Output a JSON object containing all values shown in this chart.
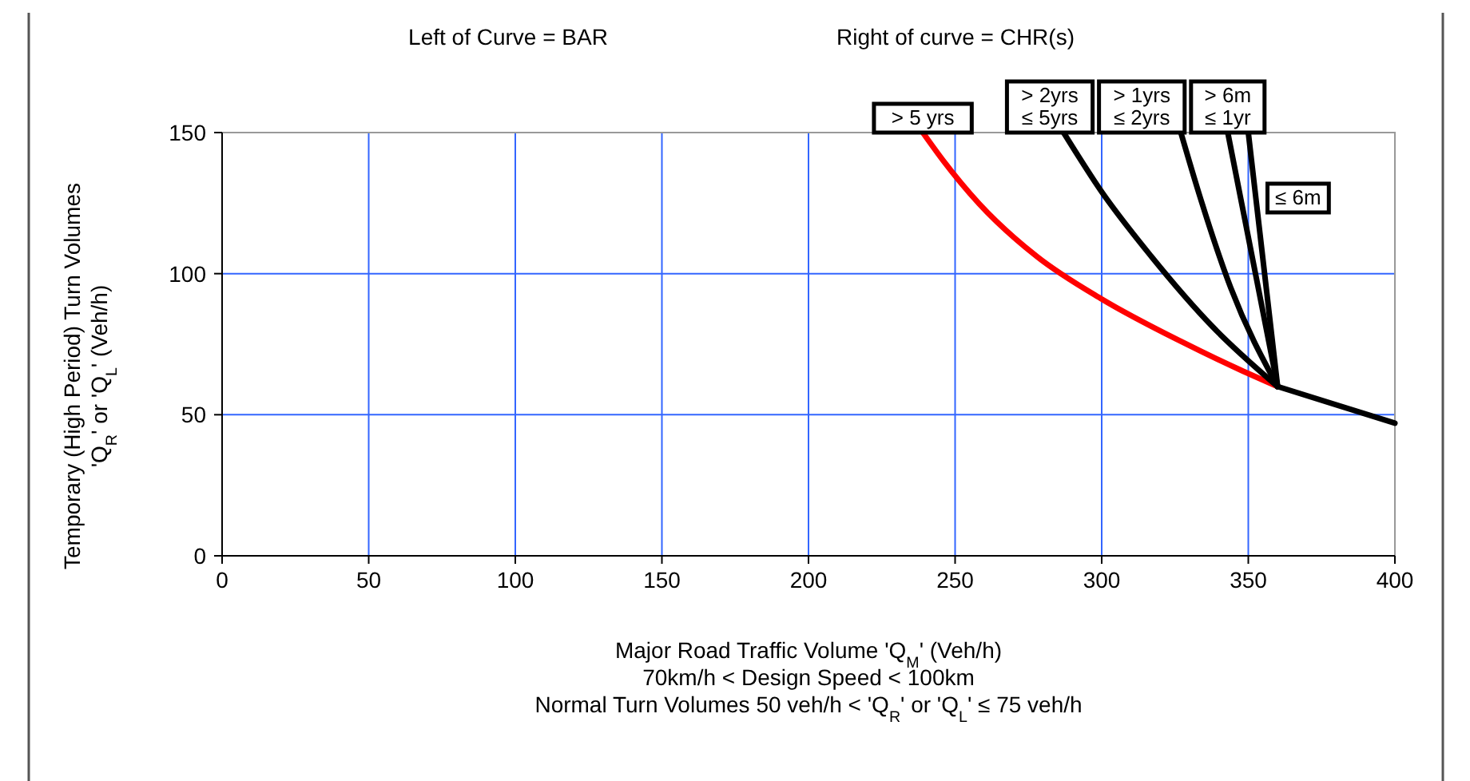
{
  "chart_data": {
    "type": "line",
    "xlabel": "Major Road Traffic Volume 'Q$_{M}$' (Veh/h)\n70km/h < Design Speed < 100km\nNormal Turn Volumes 50 veh/h  < 'Q$_{R}$' or 'Q$_{L}$' ≤ 75 veh/h",
    "ylabel": "Temporary (High Period) Turn Volumes\n'Q$_{R}$' or 'Q$_{L}$' (Veh/h)",
    "annotations": [
      "Left of Curve = BAR",
      "Right of curve = CHR(s)"
    ],
    "xlim": [
      0,
      400
    ],
    "xticks": [
      0,
      50,
      100,
      150,
      200,
      250,
      300,
      350,
      400
    ],
    "ylim": [
      0,
      150
    ],
    "yticks": [
      0,
      50,
      100,
      150
    ],
    "grid": true,
    "marker": "none",
    "line_style": "solid",
    "series": [
      {
        "name": "> 5 yrs",
        "color": "#ff0000",
        "x": [
          239,
          246,
          258,
          278,
          300,
          327,
          347,
          360
        ],
        "values": [
          150,
          140,
          125,
          106,
          91,
          76,
          66,
          60
        ]
      },
      {
        "name": "> 2yrs\n≤ 5yrs",
        "color": "#000000",
        "x": [
          287,
          300,
          317,
          338,
          360
        ],
        "values": [
          150,
          129,
          106,
          81,
          60
        ]
      },
      {
        "name": "> 1yrs\n≤ 2yrs",
        "color": "#000000",
        "x": [
          327,
          333,
          344,
          360
        ],
        "values": [
          150,
          129,
          95,
          60
        ]
      },
      {
        "name": "> 6m\n≤ 1yr",
        "color": "#000000",
        "x": [
          343,
          360
        ],
        "values": [
          150,
          60
        ]
      },
      {
        "name": "≤ 6m",
        "color": "#000000",
        "x": [
          350,
          360
        ],
        "values": [
          150,
          60
        ]
      },
      {
        "color": "#000000",
        "x": [
          360,
          400
        ],
        "values": [
          60,
          47
        ]
      }
    ]
  }
}
